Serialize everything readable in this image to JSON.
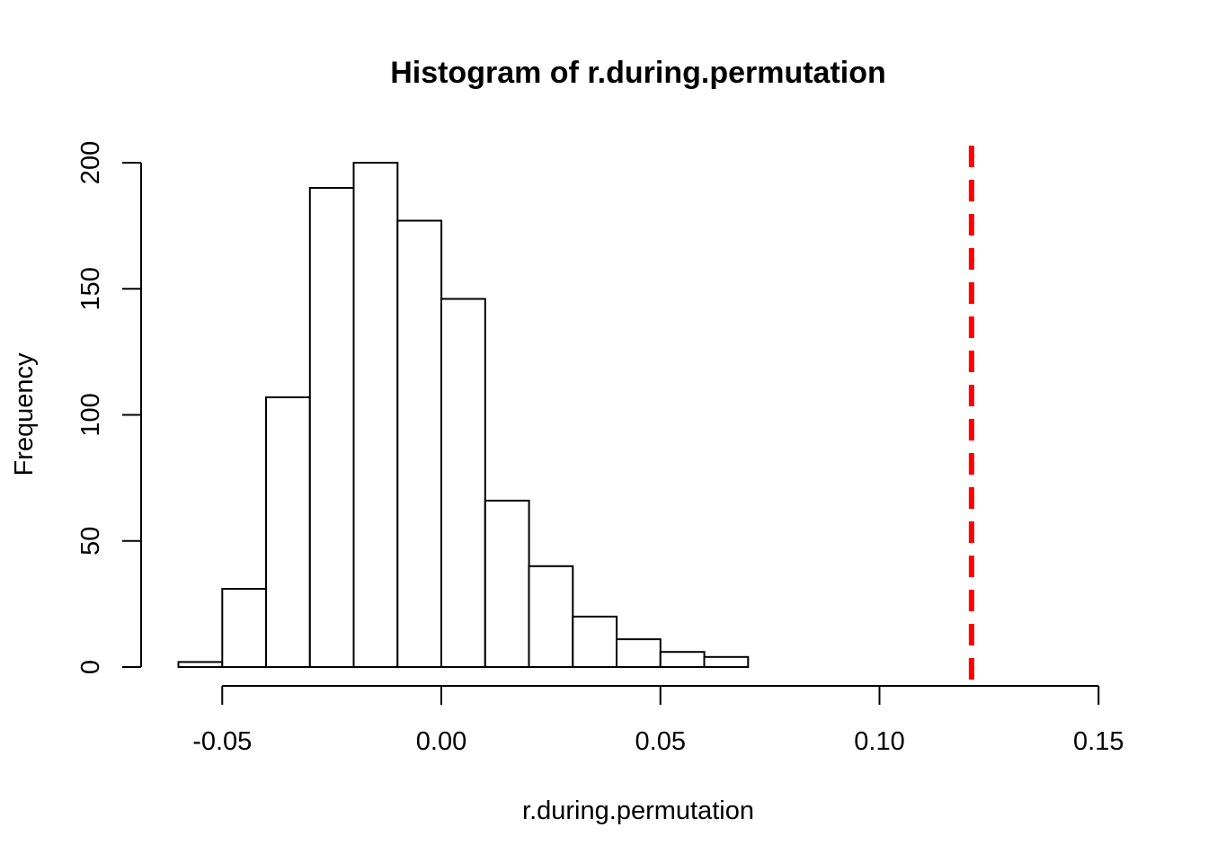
{
  "chart_data": {
    "type": "bar",
    "title": "Histogram of r.during.permutation",
    "xlabel": "r.during.permutation",
    "ylabel": "Frequency",
    "bins": [
      {
        "start": -0.06,
        "end": -0.05,
        "count": 2
      },
      {
        "start": -0.05,
        "end": -0.04,
        "count": 31
      },
      {
        "start": -0.04,
        "end": -0.03,
        "count": 107
      },
      {
        "start": -0.03,
        "end": -0.02,
        "count": 190
      },
      {
        "start": -0.02,
        "end": -0.01,
        "count": 200
      },
      {
        "start": -0.01,
        "end": 0.0,
        "count": 177
      },
      {
        "start": 0.0,
        "end": 0.01,
        "count": 146
      },
      {
        "start": 0.01,
        "end": 0.02,
        "count": 66
      },
      {
        "start": 0.02,
        "end": 0.03,
        "count": 40
      },
      {
        "start": 0.03,
        "end": 0.04,
        "count": 20
      },
      {
        "start": 0.04,
        "end": 0.05,
        "count": 11
      },
      {
        "start": 0.05,
        "end": 0.06,
        "count": 6
      },
      {
        "start": 0.06,
        "end": 0.07,
        "count": 4
      }
    ],
    "x_ticks": [
      "-0.05",
      "0.00",
      "0.05",
      "0.10",
      "0.15"
    ],
    "x_tick_values": [
      -0.05,
      0.0,
      0.05,
      0.1,
      0.15
    ],
    "y_ticks": [
      "0",
      "50",
      "100",
      "150",
      "200"
    ],
    "y_tick_values": [
      0,
      50,
      100,
      150,
      200
    ],
    "xlim": [
      -0.06,
      0.15
    ],
    "ylim": [
      0,
      200
    ],
    "observed_line": {
      "x": 0.121,
      "color": "#ff0000",
      "style": "dashed"
    },
    "bar_fill": "#ffffff",
    "bar_stroke": "#000000",
    "grid": false
  }
}
